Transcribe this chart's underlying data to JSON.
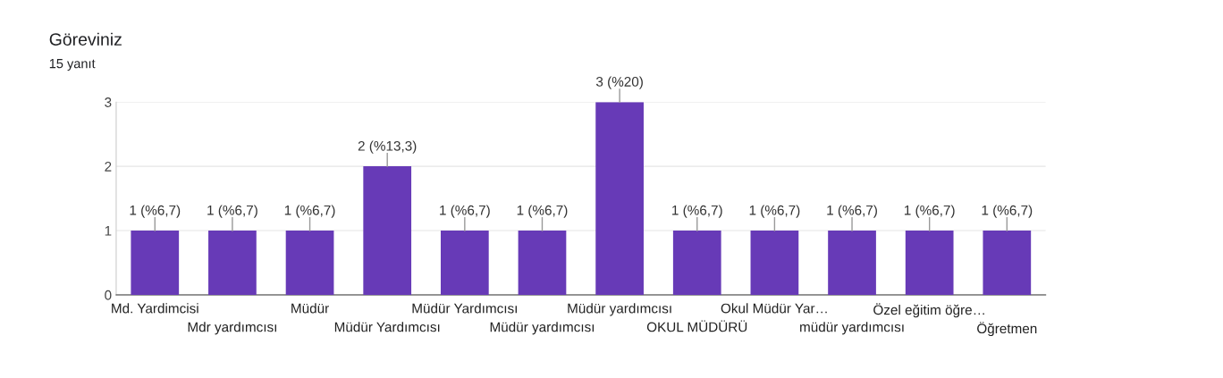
{
  "chart_data": {
    "type": "bar",
    "title": "Göreviniz",
    "subtitle": "15 yanıt",
    "categories": [
      "Md. Yardimcisi",
      "Mdr yardımcısı",
      "Müdür",
      "Müdür Yardımcısı",
      "Müdür Yardımcısı",
      "Müdür yardımcısı",
      "Müdür yardımcısı",
      "OKUL MÜDÜRÜ",
      "Okul Müdür Yar…",
      "müdür yardımcısı",
      "Özel eğitim öğre…",
      "Öğretmen"
    ],
    "values": [
      1,
      1,
      1,
      2,
      1,
      1,
      3,
      1,
      1,
      1,
      1,
      1
    ],
    "value_labels": [
      "1 (%6,7)",
      "1 (%6,7)",
      "1 (%6,7)",
      "2 (%13,3)",
      "1 (%6,7)",
      "1 (%6,7)",
      "3 (%20)",
      "1 (%6,7)",
      "1 (%6,7)",
      "1 (%6,7)",
      "1 (%6,7)",
      "1 (%6,7)"
    ],
    "color": "#673ab7",
    "ylim": [
      0,
      3
    ],
    "yticks": [
      0,
      1,
      2,
      3
    ],
    "grid": "y"
  }
}
